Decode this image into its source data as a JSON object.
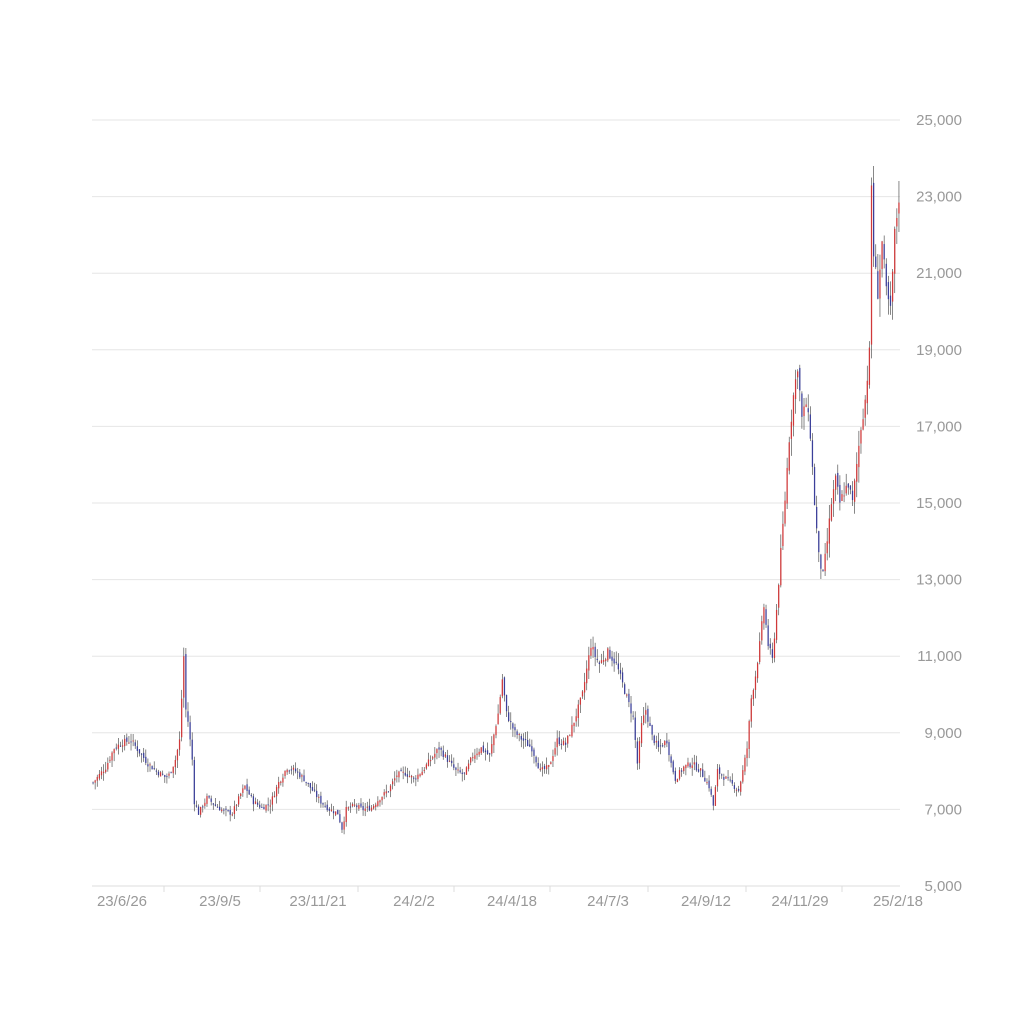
{
  "chart_data": {
    "type": "candlestick",
    "title": "",
    "xlabel": "",
    "ylabel": "",
    "ylim": [
      5000,
      25000
    ],
    "y_ticks": [
      "25,000",
      "23,000",
      "21,000",
      "19,000",
      "17,000",
      "15,000",
      "13,000",
      "11,000",
      "9,000",
      "7,000",
      "5,000"
    ],
    "x_ticks": [
      "23/6/26",
      "23/9/5",
      "23/11/21",
      "24/2/2",
      "24/4/18",
      "24/7/3",
      "24/9/12",
      "24/11/29",
      "25/2/18"
    ],
    "grid": true,
    "up_color": "#d0393a",
    "down_color": "#3b3f9a",
    "wick_color": "#555555",
    "close_path": [
      [
        0,
        7700
      ],
      [
        6,
        8100
      ],
      [
        10,
        8600
      ],
      [
        14,
        8750
      ],
      [
        18,
        8800
      ],
      [
        22,
        8500
      ],
      [
        26,
        8200
      ],
      [
        30,
        8000
      ],
      [
        34,
        7850
      ],
      [
        36,
        7900
      ],
      [
        39,
        8300
      ],
      [
        41,
        8800
      ],
      [
        43,
        11000
      ],
      [
        44,
        9600
      ],
      [
        45,
        9300
      ],
      [
        47,
        8300
      ],
      [
        48,
        7200
      ],
      [
        50,
        6900
      ],
      [
        54,
        7300
      ],
      [
        58,
        7100
      ],
      [
        62,
        6950
      ],
      [
        66,
        6900
      ],
      [
        70,
        7400
      ],
      [
        72,
        7600
      ],
      [
        76,
        7200
      ],
      [
        80,
        7050
      ],
      [
        84,
        7150
      ],
      [
        88,
        7700
      ],
      [
        92,
        8100
      ],
      [
        96,
        8000
      ],
      [
        100,
        7800
      ],
      [
        104,
        7500
      ],
      [
        108,
        7200
      ],
      [
        112,
        7000
      ],
      [
        116,
        6900
      ],
      [
        118,
        6500
      ],
      [
        120,
        7000
      ],
      [
        124,
        7100
      ],
      [
        128,
        7000
      ],
      [
        132,
        7050
      ],
      [
        136,
        7300
      ],
      [
        140,
        7500
      ],
      [
        144,
        7900
      ],
      [
        148,
        7950
      ],
      [
        152,
        7800
      ],
      [
        156,
        8000
      ],
      [
        160,
        8300
      ],
      [
        164,
        8600
      ],
      [
        168,
        8300
      ],
      [
        172,
        8000
      ],
      [
        176,
        7900
      ],
      [
        180,
        8400
      ],
      [
        184,
        8600
      ],
      [
        188,
        8400
      ],
      [
        192,
        9500
      ],
      [
        194,
        10400
      ],
      [
        196,
        9500
      ],
      [
        200,
        9000
      ],
      [
        204,
        8800
      ],
      [
        208,
        8600
      ],
      [
        212,
        8000
      ],
      [
        216,
        8100
      ],
      [
        220,
        8800
      ],
      [
        224,
        8700
      ],
      [
        228,
        9300
      ],
      [
        232,
        10000
      ],
      [
        236,
        11300
      ],
      [
        238,
        11000
      ],
      [
        240,
        10800
      ],
      [
        244,
        11100
      ],
      [
        248,
        10800
      ],
      [
        252,
        10100
      ],
      [
        256,
        9400
      ],
      [
        258,
        8200
      ],
      [
        260,
        9200
      ],
      [
        262,
        9600
      ],
      [
        265,
        8900
      ],
      [
        268,
        8600
      ],
      [
        272,
        8800
      ],
      [
        274,
        8200
      ],
      [
        276,
        7800
      ],
      [
        280,
        8100
      ],
      [
        284,
        8200
      ],
      [
        288,
        8000
      ],
      [
        292,
        7600
      ],
      [
        294,
        7100
      ],
      [
        296,
        8000
      ],
      [
        300,
        7800
      ],
      [
        304,
        7600
      ],
      [
        306,
        7500
      ],
      [
        308,
        8000
      ],
      [
        310,
        8600
      ],
      [
        312,
        9900
      ],
      [
        314,
        10500
      ],
      [
        316,
        11300
      ],
      [
        318,
        12300
      ],
      [
        320,
        11300
      ],
      [
        322,
        10900
      ],
      [
        324,
        12200
      ],
      [
        326,
        13700
      ],
      [
        328,
        15100
      ],
      [
        330,
        16700
      ],
      [
        332,
        17800
      ],
      [
        334,
        18600
      ],
      [
        336,
        17200
      ],
      [
        338,
        17600
      ],
      [
        340,
        16800
      ],
      [
        342,
        15000
      ],
      [
        344,
        13600
      ],
      [
        346,
        13100
      ],
      [
        348,
        14000
      ],
      [
        350,
        15000
      ],
      [
        352,
        15600
      ],
      [
        354,
        15000
      ],
      [
        356,
        15300
      ],
      [
        358,
        15500
      ],
      [
        360,
        15000
      ],
      [
        362,
        16000
      ],
      [
        364,
        17000
      ],
      [
        366,
        17700
      ],
      [
        368,
        18900
      ],
      [
        369,
        23300
      ],
      [
        370,
        21500
      ],
      [
        372,
        20500
      ],
      [
        374,
        21800
      ],
      [
        376,
        20500
      ],
      [
        378,
        20000
      ],
      [
        380,
        22000
      ],
      [
        382,
        23000
      ]
    ]
  }
}
